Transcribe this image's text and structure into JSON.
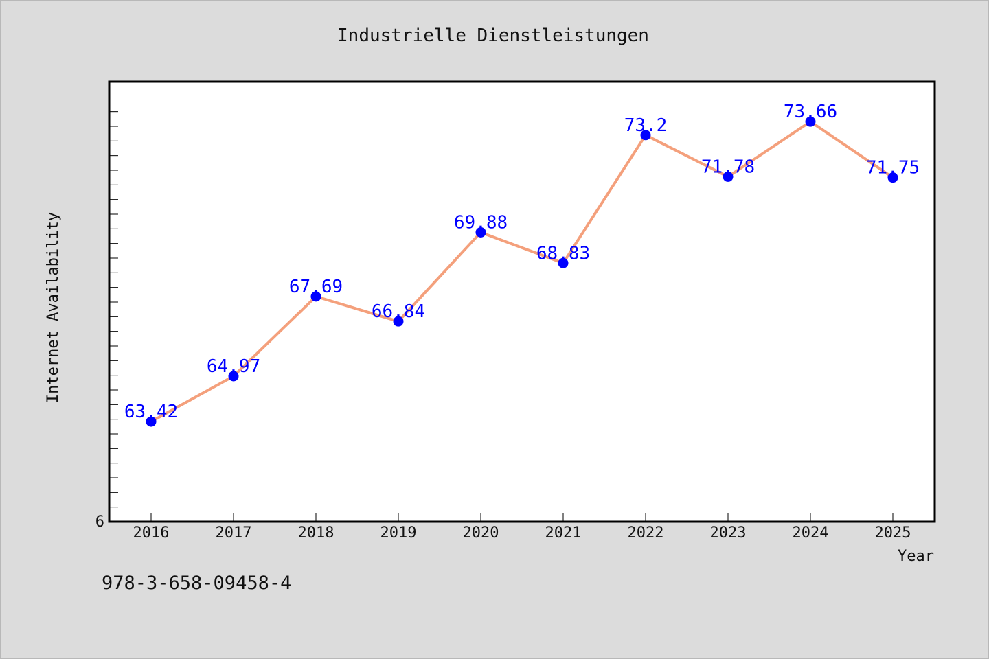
{
  "chart_data": {
    "type": "line",
    "title": "Industrielle Dienstleistungen",
    "xlabel": "Year",
    "ylabel": "Internet Availability",
    "categories": [
      "2016",
      "2017",
      "2018",
      "2019",
      "2020",
      "2021",
      "2022",
      "2023",
      "2024",
      "2025"
    ],
    "series": [
      {
        "values": [
          63.42,
          64.97,
          67.69,
          66.84,
          69.88,
          68.83,
          73.2,
          71.78,
          73.66,
          71.75
        ],
        "data_labels": [
          "63.42",
          "64.97",
          "67.69",
          "66.84",
          "69.88",
          "68.83",
          "73.2",
          "71.78",
          "73.66",
          "71.75"
        ],
        "line_color": "#f4a07c",
        "marker_color": "#0000ff"
      }
    ],
    "ylim": [
      60,
      75
    ],
    "y_tick_labels": [
      "6"
    ],
    "grid": false,
    "legend": "none",
    "frame_background": "#ffffff",
    "page_background": "#dcdcdc"
  },
  "footnote": "978-3-658-09458-4"
}
